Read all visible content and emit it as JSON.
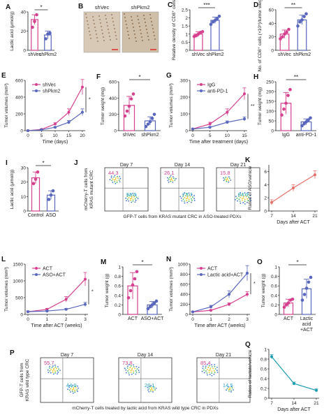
{
  "colors": {
    "pink": "#d6408f",
    "blue": "#5866bd",
    "teal": "#1a9db0",
    "cyan": "#2aa9c4",
    "salmon": "#e8706a",
    "black": "#222222"
  },
  "chart_data": [
    {
      "panel": "A",
      "type": "bar",
      "ylabel": "Lactic acid (μmol/g)",
      "categories": [
        "shVec",
        "shPkm2"
      ],
      "values": [
        32,
        16
      ],
      "errors": [
        5,
        4
      ],
      "ylim": [
        0,
        40
      ],
      "yticks": [
        0,
        20,
        40
      ],
      "points": [
        [
          24,
          30,
          37
        ],
        [
          12,
          17,
          18
        ]
      ],
      "sig": "*"
    },
    {
      "panel": "B",
      "type": "image",
      "labels": [
        "shVec",
        "shPkm2"
      ]
    },
    {
      "panel": "C",
      "type": "bar",
      "ylabel": "Relative density of CD8⁺ cells",
      "categories": [
        "shVec",
        "shPkm2"
      ],
      "values": [
        1.0,
        1.85
      ],
      "errors": [
        0.15,
        0.2
      ],
      "ylim": [
        0,
        2.5
      ],
      "yticks": [
        0,
        0.5,
        1.0,
        1.5,
        2.0,
        2.5
      ],
      "points": [
        [
          0.85,
          0.9,
          1.0,
          1.1,
          1.15
        ],
        [
          1.6,
          1.75,
          1.85,
          1.95,
          2.1
        ]
      ],
      "sig": "***"
    },
    {
      "panel": "D",
      "type": "bar",
      "ylabel": "No. of CD8⁺ cells (×10⁵)/tumor weight (g)",
      "categories": [
        "shVec",
        "shPkm2"
      ],
      "values": [
        24,
        45
      ],
      "errors": [
        6,
        7
      ],
      "ylim": [
        0,
        60
      ],
      "yticks": [
        0,
        20,
        40,
        60
      ],
      "points": [
        [
          17,
          20,
          24,
          27,
          31
        ],
        [
          36,
          42,
          45,
          50,
          54
        ]
      ],
      "sig": "**"
    },
    {
      "panel": "E",
      "type": "line",
      "ylabel": "Tumor volumes (mm³)",
      "xlabel": "Time (days)",
      "x": [
        0,
        5,
        10,
        15,
        20
      ],
      "xticks": [
        0,
        5,
        10,
        15,
        20
      ],
      "ylim": [
        0,
        600
      ],
      "yticks": [
        0,
        200,
        400,
        600
      ],
      "series": [
        {
          "name": "shVec",
          "values": [
            0,
            15,
            80,
            220,
            520
          ],
          "errors": [
            0,
            5,
            15,
            40,
            90
          ]
        },
        {
          "name": "shPkm2",
          "values": [
            0,
            10,
            40,
            100,
            220
          ],
          "errors": [
            0,
            4,
            10,
            20,
            40
          ]
        }
      ],
      "sig": "*"
    },
    {
      "panel": "F",
      "type": "bar",
      "ylabel": "Tumor weight (mg)",
      "categories": [
        "shVec",
        "shPkm2"
      ],
      "values": [
        310,
        120
      ],
      "errors": [
        110,
        50
      ],
      "ylim": [
        0,
        600
      ],
      "yticks": [
        0,
        200,
        400,
        600
      ],
      "points": [
        [
          180,
          240,
          300,
          390,
          450
        ],
        [
          50,
          80,
          110,
          150,
          200
        ]
      ],
      "sig": "*"
    },
    {
      "panel": "G",
      "type": "line",
      "ylabel": "Tumor volumes (mm³)",
      "xlabel": "Time after treatment (days)",
      "x": [
        0,
        5,
        10,
        15
      ],
      "xticks": [
        0,
        5,
        10,
        15
      ],
      "ylim": [
        0,
        300
      ],
      "yticks": [
        0,
        100,
        200,
        300
      ],
      "series": [
        {
          "name": "IgG",
          "values": [
            10,
            40,
            110,
            220
          ],
          "errors": [
            3,
            10,
            20,
            35
          ]
        },
        {
          "name": "anti-PD-1",
          "values": [
            10,
            20,
            50,
            70
          ],
          "errors": [
            3,
            5,
            8,
            12
          ]
        }
      ],
      "sig": "**"
    },
    {
      "panel": "H",
      "type": "bar",
      "ylabel": "Tumor weight (mg)",
      "categories": [
        "IgG",
        "anti-PD-1"
      ],
      "values": [
        140,
        45
      ],
      "errors": [
        55,
        15
      ],
      "ylim": [
        0,
        250
      ],
      "yticks": [
        0,
        50,
        100,
        150,
        200,
        250
      ],
      "points": [
        [
          80,
          110,
          140,
          180,
          210
        ],
        [
          25,
          35,
          45,
          55,
          65
        ]
      ],
      "sig": "**"
    },
    {
      "panel": "I",
      "type": "bar",
      "ylabel": "Lactic acid (μmol/g)",
      "categories": [
        "Control",
        "ASO"
      ],
      "values": [
        23,
        11
      ],
      "errors": [
        4,
        3
      ],
      "ylim": [
        0,
        30
      ],
      "yticks": [
        0,
        10,
        20,
        30
      ],
      "points": [
        [
          19,
          22,
          27
        ],
        [
          8,
          11,
          14
        ]
      ],
      "sig": "*"
    },
    {
      "panel": "J",
      "type": "scatter",
      "ylabel": "mCherry-T cells from KRAS mutant CRC",
      "xlabel": "GFP-T cells from KRAS mutant CRC in ASO-treated PDXs",
      "days": [
        "Day 7",
        "Day 14",
        "Day 21"
      ],
      "upper": [
        "44.3",
        "26.1",
        "15.8"
      ],
      "lower": [
        "55.5",
        "73.7",
        "84.0"
      ]
    },
    {
      "panel": "K",
      "type": "line",
      "ylabel": "Ratios of ASO/vehicle",
      "xlabel": "Days after ACT",
      "x": [
        7,
        14,
        21
      ],
      "xticks": [
        7,
        14,
        21
      ],
      "ylim": [
        0,
        7
      ],
      "yticks": [
        0,
        2,
        4,
        6
      ],
      "series": [
        {
          "values": [
            1.3,
            3.5,
            5.5
          ],
          "errors": [
            0.4,
            0.5,
            0.6
          ]
        }
      ]
    },
    {
      "panel": "L",
      "type": "line",
      "ylabel": "Tumor volumes (mm³)",
      "xlabel": "Time after ACT (weeks)",
      "x": [
        0,
        1,
        2,
        3
      ],
      "xticks": [
        0,
        1,
        2,
        3
      ],
      "ylim": [
        0,
        1500
      ],
      "yticks": [
        0,
        500,
        1000,
        1500
      ],
      "series": [
        {
          "name": "ACT",
          "values": [
            80,
            150,
            450,
            1050
          ],
          "errors": [
            20,
            30,
            80,
            200
          ]
        },
        {
          "name": "ASO+ACT",
          "values": [
            80,
            100,
            150,
            300
          ],
          "errors": [
            20,
            20,
            30,
            60
          ]
        }
      ],
      "sig": "*"
    },
    {
      "panel": "M",
      "type": "bar",
      "ylabel": "Tumor weight (g)",
      "categories": [
        "ACT",
        "ASO+ACT"
      ],
      "values": [
        0.6,
        0.2
      ],
      "errors": [
        0.28,
        0.07
      ],
      "ylim": [
        0,
        1.0
      ],
      "yticks": [
        0,
        0.2,
        0.4,
        0.6,
        0.8,
        1.0
      ],
      "points": [
        [
          0.35,
          0.5,
          0.62,
          0.75,
          0.9
        ],
        [
          0.12,
          0.16,
          0.2,
          0.24,
          0.28
        ]
      ],
      "sig": "*"
    },
    {
      "panel": "N",
      "type": "line",
      "ylabel": "Tumor volumes (mm³)",
      "xlabel": "Time after ACT (weeks)",
      "x": [
        0,
        1,
        2,
        3
      ],
      "xticks": [
        0,
        1,
        2,
        3
      ],
      "ylim": [
        0,
        1000
      ],
      "yticks": [
        0,
        200,
        400,
        600,
        800,
        1000
      ],
      "series": [
        {
          "name": "ACT",
          "values": [
            50,
            80,
            200,
            400
          ],
          "errors": [
            10,
            15,
            30,
            50
          ]
        },
        {
          "name": "Lactic acid+ACT",
          "values": [
            50,
            150,
            400,
            820
          ],
          "errors": [
            10,
            30,
            70,
            150
          ]
        }
      ],
      "sig": "*"
    },
    {
      "panel": "O",
      "type": "bar",
      "ylabel": "Tumor weight (g)",
      "categories": [
        "ACT",
        "Lactic acid +ACT"
      ],
      "values": [
        0.24,
        0.54
      ],
      "errors": [
        0.08,
        0.2
      ],
      "ylim": [
        0,
        1.0
      ],
      "yticks": [
        0,
        0.2,
        0.4,
        0.6,
        0.8,
        1.0
      ],
      "points": [
        [
          0.15,
          0.2,
          0.24,
          0.3,
          0.32
        ],
        [
          0.3,
          0.42,
          0.55,
          0.68,
          0.78
        ]
      ],
      "sig": "*"
    },
    {
      "panel": "P",
      "type": "scatter",
      "ylabel": "GFP-T cells from KRAS wild type CRC",
      "xlabel": "mCherry-T cells treated by lactic acid from KRAS wild type CRC in PDXs",
      "days": [
        "Day 7",
        "Day 14",
        "Day 21"
      ],
      "upper": [
        "55.7",
        "73.8",
        "85.4"
      ],
      "lower": [
        "44.0",
        "26.1",
        "14.5"
      ]
    },
    {
      "panel": "Q",
      "type": "line",
      "ylabel": "Ratios of lactate/vehicle",
      "xlabel": "Days after ACT",
      "x": [
        7,
        14,
        21
      ],
      "xticks": [
        7,
        14,
        21
      ],
      "ylim": [
        0,
        1.0
      ],
      "yticks": [
        0,
        0.2,
        0.4,
        0.6,
        0.8,
        1.0
      ],
      "series": [
        {
          "values": [
            0.85,
            0.3,
            0.16
          ],
          "errors": [
            0.04,
            0.03,
            0.03
          ]
        }
      ]
    }
  ]
}
